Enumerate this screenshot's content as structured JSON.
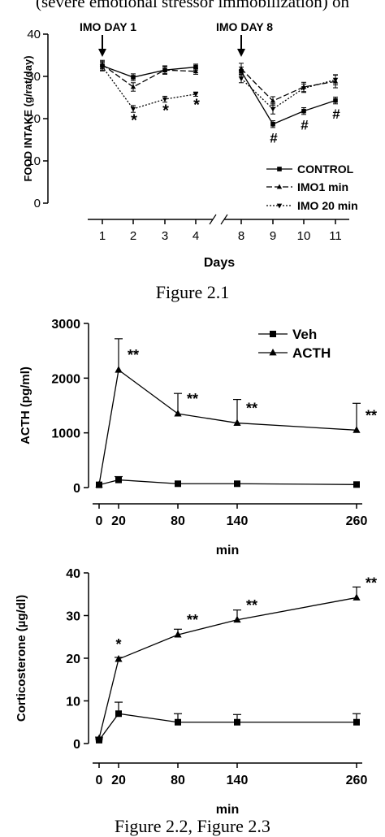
{
  "top_text": "(severe emotional stressor immobilization) on",
  "captions": {
    "figure1": "Figure 2.1",
    "figure2": "Figure 2.2, Figure 2.3"
  },
  "chart_data": [
    {
      "type": "line",
      "xlabel": "Days",
      "ylabel": "FOOD INTAKE (g/rat/day)",
      "ylim": [
        0,
        40
      ],
      "yticks": [
        0,
        10,
        20,
        30,
        40
      ],
      "x": [
        1,
        2,
        3,
        4,
        8,
        9,
        10,
        11
      ],
      "axis_break": "between 4 and 8",
      "annotations": [
        "IMO DAY 1",
        "IMO DAY 8"
      ],
      "legend": "right, lower",
      "series": [
        {
          "name": "CONTROL",
          "style": "solid",
          "marker": "square",
          "segments": [
            {
              "x": [
                1,
                2,
                3,
                4
              ],
              "values": [
                32.5,
                29.8,
                31.5,
                32.2
              ],
              "err": [
                1.0,
                0.8,
                0.8,
                0.7
              ]
            },
            {
              "x": [
                8,
                9,
                10,
                11
              ],
              "values": [
                31.2,
                18.7,
                21.8,
                24.3
              ],
              "err": [
                1.0,
                0.8,
                0.8,
                0.8
              ]
            }
          ]
        },
        {
          "name": "IMO1 min",
          "style": "dashed",
          "marker": "triangle-up",
          "segments": [
            {
              "x": [
                1,
                2,
                3,
                4
              ],
              "values": [
                32.8,
                27.5,
                31.5,
                31.2
              ],
              "err": [
                1.0,
                1.0,
                1.0,
                0.7
              ]
            },
            {
              "x": [
                8,
                9,
                10,
                11
              ],
              "values": [
                31.8,
                24.2,
                27.5,
                28.8
              ],
              "err": [
                1.3,
                1.0,
                1.1,
                1.5
              ]
            }
          ]
        },
        {
          "name": "IMO 20 min",
          "style": "dotted",
          "marker": "triangle-down",
          "segments": [
            {
              "x": [
                1,
                2,
                3,
                4
              ],
              "values": [
                32.3,
                22.3,
                24.6,
                25.8
              ],
              "err": [
                1.0,
                0.8,
                0.7,
                0.5
              ]
            },
            {
              "x": [
                8,
                9,
                10,
                11
              ],
              "values": [
                29.5,
                22.3,
                27.2,
                29.2
              ],
              "err": [
                1.0,
                1.2,
                1.0,
                1.2
              ]
            }
          ]
        }
      ],
      "sig_marks": [
        {
          "x": 2,
          "y": 19.5,
          "label": "*"
        },
        {
          "x": 3,
          "y": 21.8,
          "label": "*"
        },
        {
          "x": 4,
          "y": 23.2,
          "label": "*"
        },
        {
          "x": 9,
          "y": 15.5,
          "label": "#"
        },
        {
          "x": 10,
          "y": 18.6,
          "label": "#"
        },
        {
          "x": 11,
          "y": 21.2,
          "label": "#"
        }
      ]
    },
    {
      "type": "line",
      "xlabel": "min",
      "ylabel": "ACTH (pg/ml)",
      "ylim": [
        0,
        3000
      ],
      "yticks": [
        0,
        1000,
        2000,
        3000
      ],
      "x": [
        0,
        20,
        80,
        140,
        260
      ],
      "legend": "top-right",
      "series": [
        {
          "name": "Veh",
          "marker": "square",
          "values": [
            50,
            140,
            70,
            70,
            55
          ],
          "err": [
            0,
            60,
            0,
            0,
            0
          ]
        },
        {
          "name": "ACTH",
          "marker": "triangle-up",
          "values": [
            50,
            2150,
            1350,
            1180,
            1050
          ],
          "err": [
            0,
            570,
            370,
            430,
            490
          ]
        }
      ],
      "sig_marks": [
        {
          "x": 20,
          "y": 2150,
          "label": "**"
        },
        {
          "x": 80,
          "y": 1350,
          "label": "**"
        },
        {
          "x": 140,
          "y": 1180,
          "label": "**"
        },
        {
          "x": 260,
          "y": 1050,
          "label": "**"
        }
      ]
    },
    {
      "type": "line",
      "xlabel": "min",
      "ylabel": "Corticosterone (µg/dl)",
      "ylim": [
        0,
        40
      ],
      "yticks": [
        0,
        10,
        20,
        30,
        40
      ],
      "x": [
        0,
        20,
        80,
        140,
        260
      ],
      "series": [
        {
          "name": "Veh",
          "marker": "square",
          "values": [
            0.8,
            7.0,
            5.0,
            5.0,
            5.0
          ],
          "err": [
            0.3,
            2.7,
            2.0,
            1.8,
            2.0
          ]
        },
        {
          "name": "ACTH",
          "marker": "triangle-up",
          "values": [
            1.2,
            19.8,
            25.5,
            29.0,
            34.2
          ],
          "err": [
            0.3,
            0.4,
            1.3,
            2.3,
            2.5
          ]
        }
      ],
      "sig_marks": [
        {
          "x": 20,
          "y": 19.8,
          "label": "*"
        },
        {
          "x": 80,
          "y": 25.5,
          "label": "**"
        },
        {
          "x": 140,
          "y": 29.0,
          "label": "**"
        },
        {
          "x": 260,
          "y": 34.2,
          "label": "**"
        }
      ]
    }
  ]
}
